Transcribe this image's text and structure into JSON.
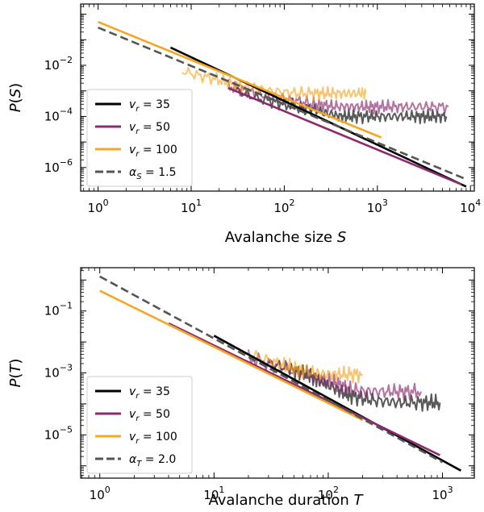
{
  "chart_data": [
    {
      "type": "line",
      "xscale": "log",
      "yscale": "log",
      "xlabel": "Avalanche size S",
      "ylabel": "P(S)",
      "xlim": [
        0.65,
        11000
      ],
      "ylim": [
        1.2e-07,
        2.5
      ],
      "xticks": [
        {
          "value": 1,
          "base": "10",
          "exp": "0"
        },
        {
          "value": 10,
          "base": "10",
          "exp": "1"
        },
        {
          "value": 100,
          "base": "10",
          "exp": "2"
        },
        {
          "value": 1000,
          "base": "10",
          "exp": "3"
        },
        {
          "value": 10000,
          "base": "10",
          "exp": "4"
        }
      ],
      "yticks": [
        {
          "value": 0.01,
          "base": "10",
          "exp": "−2"
        },
        {
          "value": 0.0001,
          "base": "10",
          "exp": "−4"
        },
        {
          "value": 1e-06,
          "base": "10",
          "exp": "−6"
        }
      ],
      "legend_position": "lower-left",
      "series": [
        {
          "name": "v_r = 35",
          "legend_base": "v",
          "legend_sub": "r",
          "legend_value": " = 35",
          "color": "#000000",
          "style": "solid",
          "fit": {
            "x": [
              6,
              9000
            ],
            "y": [
              0.05,
              1.8e-07
            ]
          },
          "noise": {
            "x": [
              30,
              45,
              70,
              100,
              150,
              200,
              260,
              330,
              400,
              480,
              600,
              800,
              1000,
              1300,
              1700,
              2200,
              2800,
              3500,
              4400,
              5500
            ],
            "y": [
              0.0011,
              0.0006,
              0.0004,
              0.0003,
              0.00022,
              0.0002,
              0.00014,
              0.00012,
              0.0001,
              0.0001,
              0.0001,
              0.0001,
              0.0001,
              0.0001,
              0.0001,
              0.0001,
              0.0001,
              0.0001,
              0.0001,
              0.0001
            ]
          }
        },
        {
          "name": "v_r = 50",
          "legend_base": "v",
          "legend_sub": "r",
          "legend_value": " = 50",
          "color": "#8b2a6e",
          "style": "solid",
          "fit": {
            "x": [
              25,
              8000
            ],
            "y": [
              0.0013,
              2.2e-07
            ]
          },
          "noise": {
            "x": [
              25,
              35,
              50,
              70,
              100,
              140,
              200,
              260,
              330,
              420,
              520,
              650,
              800,
              1000,
              1300,
              1700,
              2200,
              3000,
              4000,
              5800
            ],
            "y": [
              0.0015,
              0.0011,
              0.0008,
              0.0006,
              0.0005,
              0.0004,
              0.0003,
              0.00028,
              0.00025,
              0.00024,
              0.00024,
              0.00024,
              0.00024,
              0.00024,
              0.00024,
              0.00024,
              0.00024,
              0.00024,
              0.00024,
              0.00024
            ]
          }
        },
        {
          "name": "v_r = 100",
          "legend_base": "v",
          "legend_sub": "r",
          "legend_value": " = 100",
          "color": "#f5a623",
          "style": "solid",
          "fit": {
            "x": [
              1,
              1100
            ],
            "y": [
              0.5,
              1.5e-05
            ]
          },
          "noise": {
            "x": [
              8,
              12,
              18,
              25,
              35,
              50,
              70,
              100,
              140,
              200,
              260,
              330,
              420,
              520,
              650,
              750
            ],
            "y": [
              0.006,
              0.004,
              0.003,
              0.002,
              0.0015,
              0.0012,
              0.001,
              0.0009,
              0.0008,
              0.0008,
              0.0008,
              0.0008,
              0.0008,
              0.0008,
              0.0008,
              0.0008
            ]
          }
        },
        {
          "name": "α_S = 1.5",
          "legend_base": "α",
          "legend_sub": "S",
          "legend_value": " = 1.5",
          "color": "#555555",
          "style": "dashed",
          "fit": {
            "x": [
              1,
              9000
            ],
            "y": [
              0.3,
              3.5e-07
            ]
          }
        }
      ]
    },
    {
      "type": "line",
      "xscale": "log",
      "yscale": "log",
      "xlabel": "Avalanche duration T",
      "ylabel": "P(T)",
      "xlim": [
        0.68,
        1900
      ],
      "ylim": [
        4e-07,
        2.5
      ],
      "xticks": [
        {
          "value": 1,
          "base": "10",
          "exp": "0"
        },
        {
          "value": 10,
          "base": "10",
          "exp": "1"
        },
        {
          "value": 100,
          "base": "10",
          "exp": "2"
        },
        {
          "value": 1000,
          "base": "10",
          "exp": "3"
        }
      ],
      "yticks": [
        {
          "value": 0.1,
          "base": "10",
          "exp": "−1"
        },
        {
          "value": 0.001,
          "base": "10",
          "exp": "−3"
        },
        {
          "value": 1e-05,
          "base": "10",
          "exp": "−5"
        }
      ],
      "legend_position": "lower-left",
      "series": [
        {
          "name": "v_r = 35",
          "legend_base": "v",
          "legend_sub": "r",
          "legend_value": " = 35",
          "color": "#000000",
          "style": "solid",
          "fit": {
            "x": [
              10,
              1450
            ],
            "y": [
              0.016,
              7e-07
            ]
          },
          "noise": {
            "x": [
              30,
              40,
              50,
              60,
              70,
              80,
              90,
              100,
              120,
              140,
              160,
              200,
              250,
              320,
              400,
              500,
              650,
              800,
              950
            ],
            "y": [
              0.002,
              0.0016,
              0.0012,
              0.001,
              0.0008,
              0.0006,
              0.0005,
              0.0004,
              0.0003,
              0.00022,
              0.00018,
              0.00015,
              0.00013,
              0.00012,
              0.00011,
              0.00011,
              0.00011,
              0.00011,
              0.00011
            ]
          }
        },
        {
          "name": "v_r = 50",
          "legend_base": "v",
          "legend_sub": "r",
          "legend_value": " = 50",
          "color": "#8b2a6e",
          "style": "solid",
          "fit": {
            "x": [
              4,
              950
            ],
            "y": [
              0.04,
              2.2e-06
            ]
          },
          "noise": {
            "x": [
              20,
              30,
              40,
              55,
              70,
              90,
              110,
              130,
              160,
              200,
              250,
              320,
              400,
              500,
              650
            ],
            "y": [
              0.003,
              0.002,
              0.0015,
              0.001,
              0.0008,
              0.0006,
              0.0005,
              0.0004,
              0.0003,
              0.00026,
              0.00025,
              0.00025,
              0.00025,
              0.00025,
              0.00025
            ]
          }
        },
        {
          "name": "v_r = 100",
          "legend_base": "v",
          "legend_sub": "r",
          "legend_value": " = 100",
          "color": "#f5a623",
          "style": "solid",
          "fit": {
            "x": [
              1,
              200
            ],
            "y": [
              0.45,
              3e-05
            ]
          },
          "noise": {
            "x": [
              20,
              30,
              40,
              50,
              60,
              75,
              90,
              110,
              130,
              160,
              200
            ],
            "y": [
              0.004,
              0.0025,
              0.0018,
              0.0014,
              0.0012,
              0.001,
              0.0009,
              0.0009,
              0.0009,
              0.0009,
              0.0009
            ]
          }
        },
        {
          "name": "α_T = 2.0",
          "legend_base": "α",
          "legend_sub": "T",
          "legend_value": " = 2.0",
          "color": "#555555",
          "style": "dashed",
          "fit": {
            "x": [
              1,
              1000
            ],
            "y": [
              1.3,
              1.3e-06
            ]
          }
        }
      ]
    }
  ]
}
